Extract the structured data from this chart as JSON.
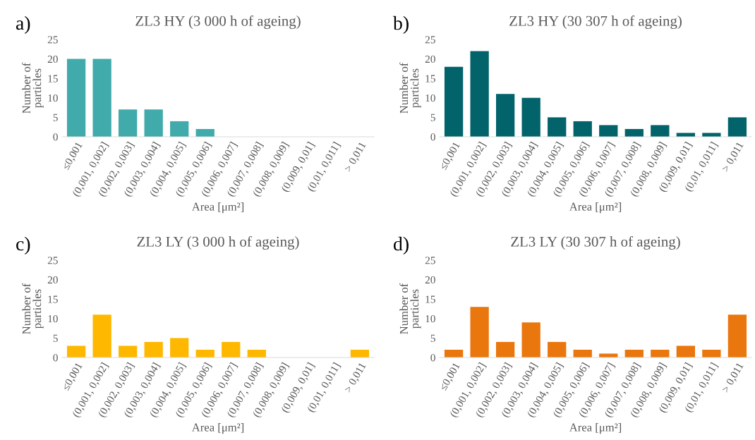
{
  "chart_data": [
    {
      "type": "bar",
      "title": "ZL3 HY (3 000 h of ageing)",
      "annotations": [
        "a)"
      ],
      "xlabel": "Area [μm²]",
      "ylabel": "Number of\nparticles",
      "categories": [
        "≤0,001",
        "(0,001, 0,002]",
        "(0,002, 0,003]",
        "(0,003, 0,004]",
        "(0,004, 0,005]",
        "(0,005, 0,006]",
        "(0,006, 0,007]",
        "(0,007, 0,008]",
        "(0,008, 0,009]",
        "(0,009, 0,01]",
        "(0,01, 0,011]",
        "> 0,011"
      ],
      "values": [
        20,
        20,
        7,
        7,
        4,
        2,
        0,
        0,
        0,
        0,
        0,
        0
      ],
      "color": "#41aaaa",
      "ylim": [
        0,
        25
      ],
      "yticks": [
        0,
        5,
        10,
        15,
        20,
        25
      ],
      "grid": false
    },
    {
      "type": "bar",
      "title": "ZL3 HY (30 307 h of ageing)",
      "annotations": [
        "b)"
      ],
      "xlabel": "Area [μm²]",
      "ylabel": "Number of\nparticles",
      "categories": [
        "≤0,001",
        "(0,001, 0,002]",
        "(0,002, 0,003]",
        "(0,003, 0,004]",
        "(0,004, 0,005]",
        "(0,005, 0,006]",
        "(0,006, 0,007]",
        "(0,007, 0,008]",
        "(0,008, 0,009]",
        "(0,009, 0,01]",
        "(0,01, 0,011]",
        "> 0,011"
      ],
      "values": [
        18,
        22,
        11,
        10,
        5,
        4,
        3,
        2,
        3,
        1,
        1,
        5
      ],
      "color": "#02636b",
      "ylim": [
        0,
        25
      ],
      "yticks": [
        0,
        5,
        10,
        15,
        20,
        25
      ],
      "grid": false
    },
    {
      "type": "bar",
      "title": "ZL3 LY (3 000 h of ageing)",
      "annotations": [
        "c)"
      ],
      "xlabel": "Area [μm²]",
      "ylabel": "Number of\nparticles",
      "categories": [
        "≤0,001",
        "(0,001, 0,002]",
        "(0,002, 0,003]",
        "(0,003, 0,004]",
        "(0,004, 0,005]",
        "(0,005, 0,006]",
        "(0,006, 0,007]",
        "(0,007, 0,008]",
        "(0,008, 0,009]",
        "(0,009, 0,01]",
        "(0,01, 0,011]",
        "> 0,011"
      ],
      "values": [
        3,
        11,
        3,
        4,
        5,
        2,
        4,
        2,
        0,
        0,
        0,
        2
      ],
      "color": "#ffb800",
      "ylim": [
        0,
        25
      ],
      "yticks": [
        0,
        5,
        10,
        15,
        20,
        25
      ],
      "grid": false
    },
    {
      "type": "bar",
      "title": "ZL3 LY (30 307 h of ageing)",
      "annotations": [
        "d)"
      ],
      "xlabel": "Area [μm²]",
      "ylabel": "Number of\nparticles",
      "categories": [
        "≤0,001",
        "(0,001, 0,002]",
        "(0,002, 0,003]",
        "(0,003, 0,004]",
        "(0,004, 0,005]",
        "(0,005, 0,006]",
        "(0,006, 0,007]",
        "(0,007, 0,008]",
        "(0,008, 0,009]",
        "(0,009, 0,01]",
        "(0,01, 0,011]",
        "> 0,011"
      ],
      "values": [
        2,
        13,
        4,
        9,
        4,
        2,
        1,
        2,
        2,
        3,
        2,
        11
      ],
      "color": "#ea760e",
      "ylim": [
        0,
        25
      ],
      "yticks": [
        0,
        5,
        10,
        15,
        20,
        25
      ],
      "grid": false
    }
  ]
}
